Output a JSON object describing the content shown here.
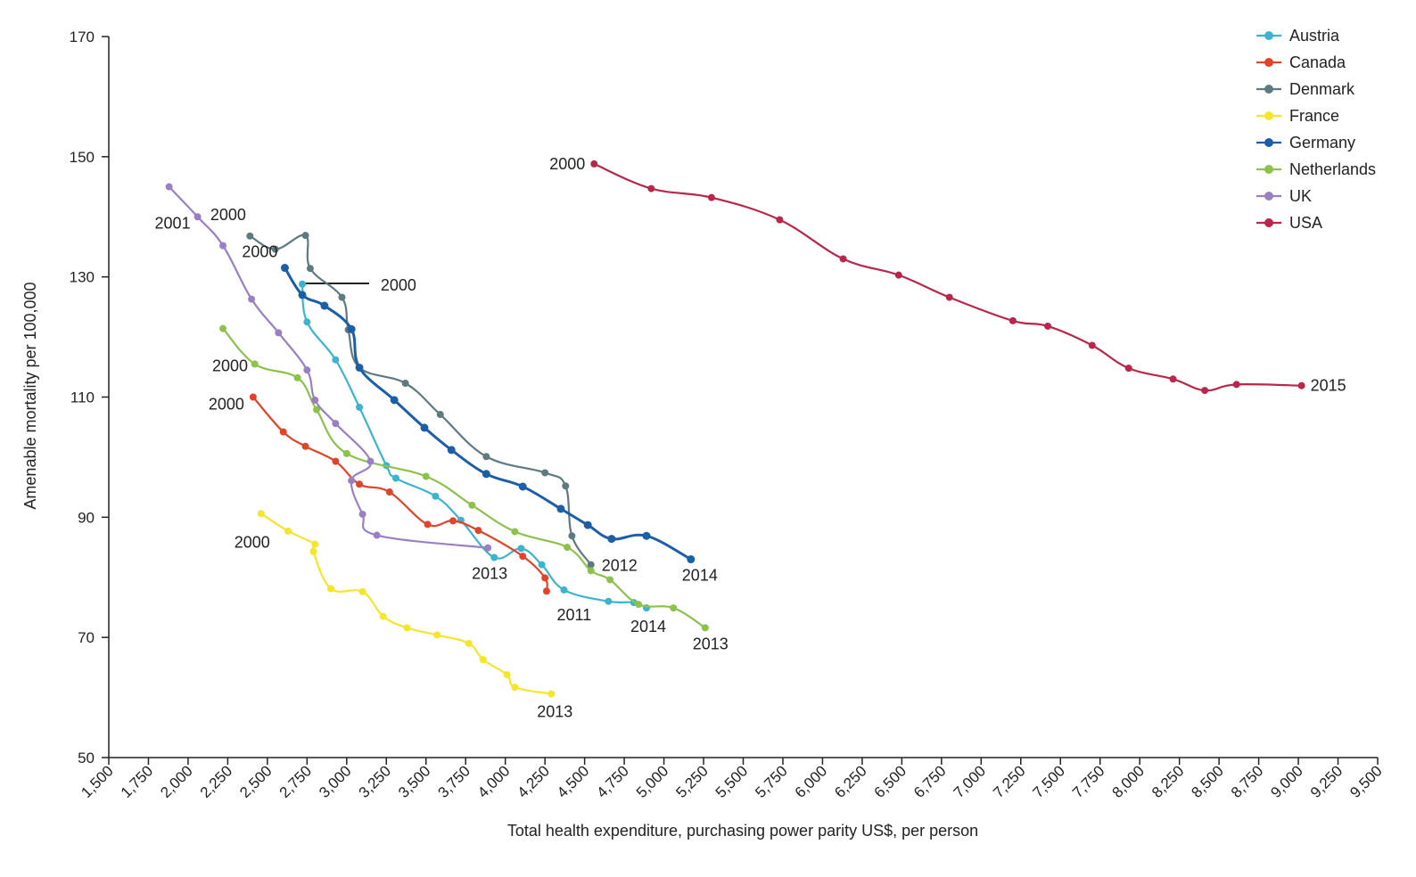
{
  "chart_data": {
    "type": "line",
    "xlabel": "Total health expenditure, purchasing power parity US$, per person",
    "ylabel": "Amenable mortality per 100,000",
    "xlim": [
      1500,
      9500
    ],
    "ylim": [
      50,
      170
    ],
    "x_ticks": [
      "1,500",
      "1,750",
      "2,000",
      "2,250",
      "2,500",
      "2,750",
      "3,000",
      "3,250",
      "3,500",
      "3,750",
      "4,000",
      "4,250",
      "4,500",
      "4,750",
      "5,000",
      "5,250",
      "5,500",
      "5,750",
      "6,000",
      "6,250",
      "6,500",
      "6,750",
      "7,000",
      "7,250",
      "7,500",
      "7,750",
      "8,000",
      "8,250",
      "8,500",
      "8,750",
      "9,000",
      "9,250",
      "9,500"
    ],
    "y_ticks": [
      "50",
      "70",
      "90",
      "110",
      "130",
      "150",
      "170"
    ],
    "legend_position": "top-right",
    "grid": false,
    "series": [
      {
        "name": "Austria",
        "color": "#3cb3cf",
        "points": [
          [
            2720,
            128.8
          ],
          [
            2750,
            122.5
          ],
          [
            2930,
            116.2
          ],
          [
            3080,
            108.3
          ],
          [
            3250,
            98.6
          ],
          [
            3310,
            96.5
          ],
          [
            3560,
            93.5
          ],
          [
            3720,
            89.5
          ],
          [
            3930,
            83.3
          ],
          [
            4100,
            84.8
          ],
          [
            4230,
            82.1
          ],
          [
            4370,
            77.9
          ],
          [
            4650,
            76.0
          ],
          [
            4810,
            75.8
          ],
          [
            4890,
            74.9
          ]
        ]
      },
      {
        "name": "Canada",
        "color": "#e0452a",
        "points": [
          [
            2410,
            110.0
          ],
          [
            2600,
            104.2
          ],
          [
            2740,
            101.8
          ],
          [
            2930,
            99.3
          ],
          [
            3080,
            95.5
          ],
          [
            3270,
            94.2
          ],
          [
            3510,
            88.8
          ],
          [
            3670,
            89.4
          ],
          [
            3830,
            87.8
          ],
          [
            4110,
            83.5
          ],
          [
            4250,
            79.9
          ],
          [
            4260,
            77.7
          ]
        ]
      },
      {
        "name": "Denmark",
        "color": "#5e7a80",
        "points": [
          [
            2390,
            136.8
          ],
          [
            2550,
            134.6
          ],
          [
            2740,
            136.9
          ],
          [
            2770,
            131.4
          ],
          [
            2970,
            126.6
          ],
          [
            3010,
            121.2
          ],
          [
            3080,
            114.9
          ],
          [
            3370,
            112.3
          ],
          [
            3590,
            107.1
          ],
          [
            3880,
            100.1
          ],
          [
            4250,
            97.4
          ],
          [
            4380,
            95.2
          ],
          [
            4420,
            86.9
          ],
          [
            4540,
            82.1
          ]
        ]
      },
      {
        "name": "France",
        "color": "#f5e62a",
        "points": [
          [
            2460,
            90.6
          ],
          [
            2630,
            87.7
          ],
          [
            2800,
            85.5
          ],
          [
            2790,
            84.3
          ],
          [
            2900,
            78.1
          ],
          [
            3100,
            77.6
          ],
          [
            3230,
            73.5
          ],
          [
            3380,
            71.6
          ],
          [
            3570,
            70.4
          ],
          [
            3770,
            69.0
          ],
          [
            3860,
            66.3
          ],
          [
            4010,
            63.8
          ],
          [
            4060,
            61.7
          ],
          [
            4290,
            60.6
          ]
        ]
      },
      {
        "name": "Germany",
        "color": "#1c5ea8",
        "points": [
          [
            2610,
            131.5
          ],
          [
            2720,
            127.0
          ],
          [
            2860,
            125.2
          ],
          [
            3030,
            121.3
          ],
          [
            3080,
            114.9
          ],
          [
            3300,
            109.5
          ],
          [
            3490,
            104.9
          ],
          [
            3660,
            101.2
          ],
          [
            3880,
            97.2
          ],
          [
            4110,
            95.1
          ],
          [
            4350,
            91.4
          ],
          [
            4520,
            88.7
          ],
          [
            4670,
            86.4
          ],
          [
            4890,
            86.9
          ],
          [
            5170,
            83.0
          ]
        ]
      },
      {
        "name": "Netherlands",
        "color": "#8cc24a",
        "points": [
          [
            2220,
            121.4
          ],
          [
            2420,
            115.5
          ],
          [
            2690,
            113.2
          ],
          [
            2810,
            107.9
          ],
          [
            3000,
            100.6
          ],
          [
            3500,
            96.8
          ],
          [
            3790,
            92.0
          ],
          [
            4060,
            87.6
          ],
          [
            4390,
            85.0
          ],
          [
            4540,
            81.1
          ],
          [
            4660,
            79.6
          ],
          [
            4840,
            75.5
          ],
          [
            5060,
            74.9
          ],
          [
            5260,
            71.6
          ]
        ]
      },
      {
        "name": "UK",
        "color": "#9b7fc3",
        "points": [
          [
            1880,
            145.0
          ],
          [
            2060,
            140.0
          ],
          [
            2220,
            135.2
          ],
          [
            2400,
            126.3
          ],
          [
            2570,
            120.7
          ],
          [
            2750,
            114.5
          ],
          [
            2800,
            109.5
          ],
          [
            2930,
            105.6
          ],
          [
            3150,
            99.3
          ],
          [
            3030,
            96.1
          ],
          [
            3100,
            90.5
          ],
          [
            3190,
            87.0
          ],
          [
            3890,
            84.9
          ]
        ]
      },
      {
        "name": "USA",
        "color": "#b8274a",
        "points": [
          [
            4560,
            148.8
          ],
          [
            4920,
            144.7
          ],
          [
            5300,
            143.2
          ],
          [
            5730,
            139.5
          ],
          [
            6130,
            133.0
          ],
          [
            6480,
            130.3
          ],
          [
            6800,
            126.6
          ],
          [
            7200,
            122.7
          ],
          [
            7420,
            121.8
          ],
          [
            7700,
            118.6
          ],
          [
            7930,
            114.8
          ],
          [
            8210,
            113.0
          ],
          [
            8410,
            111.1
          ],
          [
            8610,
            112.1
          ],
          [
            9020,
            111.9
          ]
        ]
      }
    ],
    "annotations": [
      {
        "text": "2000",
        "x": 2410,
        "y": 136.8,
        "anchor": "end",
        "dx": -8,
        "dy": -18
      },
      {
        "text": "2000",
        "x": 2610,
        "y": 131.5,
        "anchor": "end",
        "dx": -8,
        "dy": -12
      },
      {
        "text": "2000",
        "x": 2460,
        "y": 90.6,
        "anchor": "end",
        "dx": 10,
        "dy": 38
      },
      {
        "text": "2001",
        "x": 1880,
        "y": 145.0,
        "anchor": "end",
        "dx": 24,
        "dy": 47
      },
      {
        "text": "2000",
        "x": 2220,
        "y": 121.4,
        "anchor": "end",
        "dx": 28,
        "dy": 48
      },
      {
        "text": "2000",
        "x": 2410,
        "y": 110.0,
        "anchor": "end",
        "dx": -10,
        "dy": 14
      },
      {
        "text": "2000",
        "x": 4560,
        "y": 148.8,
        "anchor": "end",
        "dx": -10,
        "dy": 6
      },
      {
        "text": "2000",
        "x": 3180,
        "y": 128.8,
        "anchor": "start",
        "dx": 6,
        "dy": 7
      },
      {
        "text": "2013",
        "x": 3890,
        "y": 84.9,
        "anchor": "end",
        "dx": 22,
        "dy": 35
      },
      {
        "text": "2011",
        "x": 4370,
        "y": 77.9,
        "anchor": "start",
        "dx": -8,
        "dy": 34
      },
      {
        "text": "2014",
        "x": 4890,
        "y": 74.9,
        "anchor": "end",
        "dx": 22,
        "dy": 27
      },
      {
        "text": "2013",
        "x": 5260,
        "y": 71.6,
        "anchor": "end",
        "dx": 26,
        "dy": 24
      },
      {
        "text": "2012",
        "x": 4540,
        "y": 82.1,
        "anchor": "start",
        "dx": 12,
        "dy": 7
      },
      {
        "text": "2014",
        "x": 5170,
        "y": 83.0,
        "anchor": "start",
        "dx": -10,
        "dy": 24
      },
      {
        "text": "2013",
        "x": 4290,
        "y": 60.6,
        "anchor": "end",
        "dx": 24,
        "dy": 26
      },
      {
        "text": "2015",
        "x": 9020,
        "y": 111.9,
        "anchor": "start",
        "dx": 10,
        "dy": 6
      }
    ]
  }
}
